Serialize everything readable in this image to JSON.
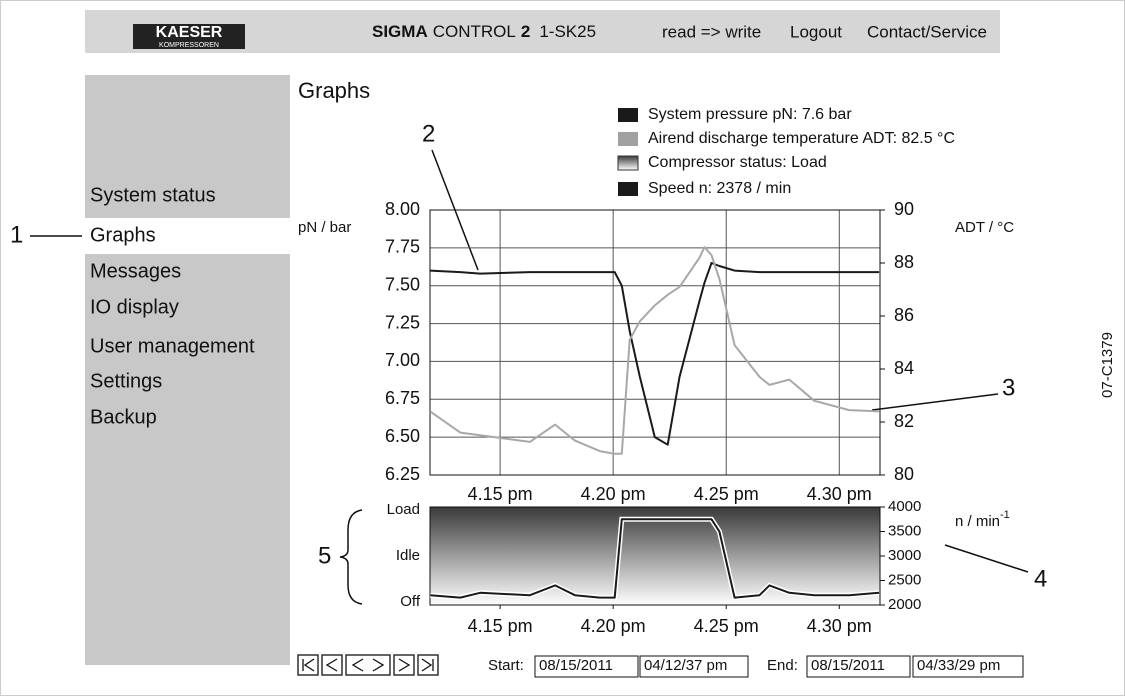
{
  "header": {
    "logo_top": "KAESER",
    "logo_bottom": "KOMPRESSOREN",
    "product": [
      "SIGMA",
      "CONTROL",
      "2"
    ],
    "model": "1-SK25",
    "links": [
      "read => write",
      "Logout",
      "Contact/Service"
    ]
  },
  "menu": [
    "System status",
    "Graphs",
    "Messages",
    "IO display",
    "User management",
    "Settings",
    "Backup"
  ],
  "callouts": [
    "1",
    "2",
    "3",
    "4",
    "5"
  ],
  "figure_id": "07-C1379",
  "page_title": "Graphs",
  "legend": [
    {
      "text": "System pressure pN:  7.6 bar",
      "color": "#1a1a1a"
    },
    {
      "text": "Airend discharge temperature ADT:  82.5 °C",
      "color": "#a0a0a0"
    },
    {
      "text": "Compressor status:  Load",
      "color": "gradient"
    },
    {
      "text": "Speed n:  2378 / min",
      "color": "#1a1a1a"
    }
  ],
  "chart_data": [
    {
      "type": "line",
      "y_label": "pN / bar",
      "y2_label": "ADT / °C",
      "x": [
        11.91,
        13.24,
        14.12,
        16.32,
        17.43,
        18.31,
        19.41,
        20.07,
        20.38,
        20.73,
        21.18,
        21.84,
        22.41,
        22.94,
        23.82,
        24.04,
        24.35,
        24.7,
        25.37,
        26.47,
        26.91,
        27.79,
        28.9,
        30.44,
        31.76
      ],
      "xlim": [
        11.9,
        31.8
      ],
      "xticks": [
        {
          "value": 15,
          "label": "4.15 pm"
        },
        {
          "value": 20,
          "label": "4.20 pm"
        },
        {
          "value": 25,
          "label": "4.25 pm"
        },
        {
          "value": 30,
          "label": "4.30 pm"
        }
      ],
      "ylim": [
        6.25,
        8
      ],
      "yticks": [
        {
          "value": 6.25,
          "label": "6.25"
        },
        {
          "value": 6.5,
          "label": "6.50"
        },
        6.75,
        {
          "value": 7,
          "label": "7.00"
        },
        7.25,
        {
          "value": 7.5,
          "label": "7.50"
        },
        7.75,
        {
          "value": 8,
          "label": "8.00"
        }
      ],
      "y2lim": [
        80,
        90
      ],
      "y2ticks": [
        80,
        82,
        84,
        86,
        88,
        90
      ],
      "grid": true,
      "series": [
        {
          "color": "#1a1a1a",
          "values": [
            7.6,
            7.59,
            7.58,
            7.59,
            7.59,
            7.59,
            7.59,
            7.59,
            7.5,
            7.2,
            6.9,
            6.5,
            6.45,
            6.9,
            7.4,
            7.52,
            7.65,
            7.63,
            7.6,
            7.59,
            7.59,
            7.59,
            7.59,
            7.59,
            7.59
          ]
        },
        {
          "color": "#a8a8a8",
          "axis": "y2",
          "values": [
            82.4,
            81.6,
            81.5,
            81.25,
            81.9,
            81.3,
            80.9,
            80.8,
            80.8,
            85.1,
            85.8,
            86.4,
            86.8,
            87.1,
            88.2,
            88.6,
            88.3,
            87.4,
            84.9,
            83.7,
            83.4,
            83.6,
            82.8,
            82.45,
            82.4
          ]
        }
      ]
    },
    {
      "type": "line",
      "y_label": "n / min",
      "y_label_sup": "-1",
      "status_labels": [
        "Load",
        "Idle",
        "Off"
      ],
      "x": [
        11.91,
        13.24,
        14.12,
        16.32,
        17.43,
        18.31,
        19.41,
        20.07,
        20.38,
        20.73,
        21.18,
        21.84,
        22.41,
        22.94,
        23.82,
        24.04,
        24.35,
        24.7,
        25.37,
        26.47,
        26.91,
        27.79,
        28.9,
        30.44,
        31.76
      ],
      "xlim": [
        11.9,
        31.8
      ],
      "xticks": [
        {
          "value": 15,
          "label": "4.15 pm"
        },
        {
          "value": 20,
          "label": "4.20 pm"
        },
        {
          "value": 25,
          "label": "4.25 pm"
        },
        {
          "value": 30,
          "label": "4.30 pm"
        }
      ],
      "ylim": [
        2000,
        4000
      ],
      "yticks": [
        2000,
        2500,
        3000,
        3500,
        4000
      ],
      "series": [
        {
          "color": "#1a1a1a",
          "values": [
            2200,
            2150,
            2250,
            2200,
            2400,
            2200,
            2150,
            2150,
            3750,
            3750,
            3750,
            3750,
            3750,
            3750,
            3750,
            3750,
            3750,
            3500,
            2150,
            2200,
            2400,
            2250,
            2200,
            2200,
            2250
          ]
        }
      ]
    }
  ],
  "footer": {
    "start_label": "Start:",
    "start_date": "08/15/2011",
    "start_time": "04/12/37 pm",
    "end_label": "End:",
    "end_date": "08/15/2011",
    "end_time": "04/33/29 pm"
  }
}
